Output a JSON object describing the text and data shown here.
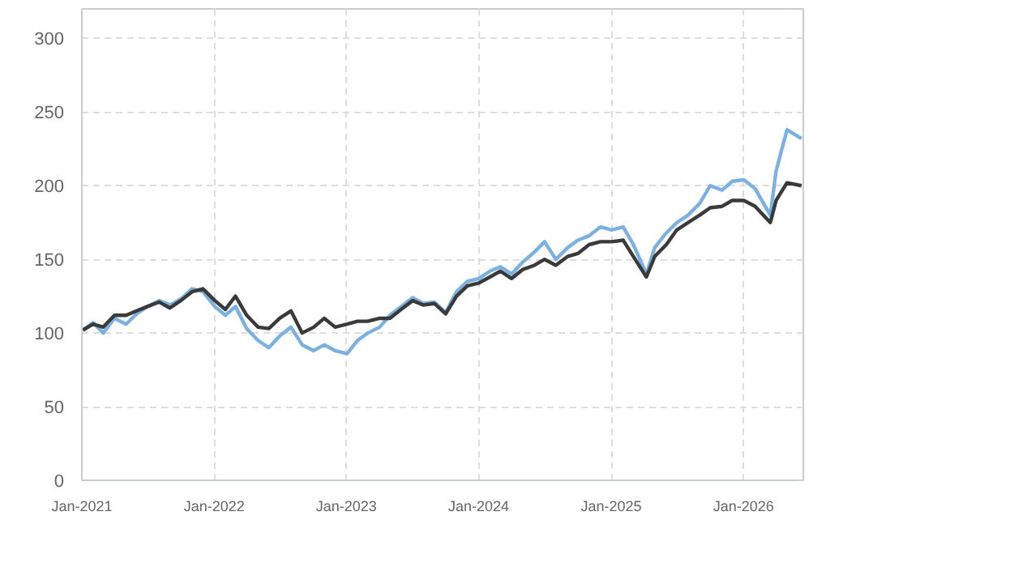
{
  "chart_data": {
    "type": "line",
    "x": [
      "2021-01-04",
      "2021-02-01",
      "2021-03-01",
      "2021-04-01",
      "2021-05-03",
      "2021-06-01",
      "2021-07-01",
      "2021-08-02",
      "2021-09-01",
      "2021-10-01",
      "2021-11-01",
      "2021-12-01",
      "2022-01-03",
      "2022-02-01",
      "2022-03-01",
      "2022-04-01",
      "2022-05-02",
      "2022-06-01",
      "2022-07-01",
      "2022-08-01",
      "2022-09-01",
      "2022-10-03",
      "2022-11-01",
      "2022-12-01",
      "2023-01-03",
      "2023-02-01",
      "2023-03-01",
      "2023-04-03",
      "2023-05-01",
      "2023-06-01",
      "2023-07-03",
      "2023-08-01",
      "2023-09-01",
      "2023-10-02",
      "2023-11-01",
      "2023-12-01",
      "2024-01-02",
      "2024-02-01",
      "2024-03-01",
      "2024-04-01",
      "2024-05-01",
      "2024-06-03",
      "2024-07-01",
      "2024-08-01",
      "2024-09-03",
      "2024-10-01",
      "2024-11-01",
      "2024-12-02",
      "2025-01-02",
      "2025-02-03",
      "2025-03-03",
      "2025-04-08",
      "2025-05-01",
      "2025-06-02",
      "2025-07-01",
      "2025-08-01",
      "2025-09-02",
      "2025-10-01",
      "2025-11-03",
      "2025-12-01",
      "2026-01-02",
      "2026-02-02",
      "2026-03-16",
      "2026-04-01",
      "2026-05-01",
      "2026-06-10"
    ],
    "series": [
      {
        "color": "#7ab0e2",
        "values": [
          102,
          107,
          100,
          110,
          106,
          113,
          118,
          122,
          119,
          123,
          130,
          128,
          118,
          112,
          118,
          103,
          95,
          90,
          98,
          104,
          92,
          88,
          92,
          88,
          86,
          95,
          100,
          104,
          112,
          118,
          124,
          120,
          121,
          114,
          128,
          135,
          137,
          142,
          145,
          140,
          148,
          155,
          162,
          150,
          158,
          163,
          166,
          172,
          170,
          172,
          160,
          140,
          158,
          168,
          175,
          180,
          188,
          200,
          197,
          203,
          204,
          198,
          180,
          210,
          238,
          232
        ]
      },
      {
        "color": "#3a3a3c",
        "values": [
          102,
          106,
          104,
          112,
          112,
          115,
          118,
          121,
          117,
          122,
          128,
          130,
          122,
          116,
          125,
          112,
          104,
          103,
          110,
          115,
          100,
          104,
          110,
          104,
          106,
          108,
          108,
          110,
          110,
          116,
          122,
          119,
          120,
          113,
          125,
          132,
          134,
          138,
          142,
          137,
          143,
          146,
          150,
          146,
          152,
          154,
          160,
          162,
          162,
          163,
          152,
          138,
          152,
          160,
          170,
          175,
          180,
          185,
          186,
          190,
          190,
          186,
          175,
          190,
          202,
          200
        ]
      }
    ],
    "xlim": [
      "2021-01-01",
      "2026-06-15"
    ],
    "xticks": [
      {
        "value": "2021-01-01",
        "label": "Jan-2021"
      },
      {
        "value": "2022-01-01",
        "label": "Jan-2022"
      },
      {
        "value": "2023-01-01",
        "label": "Jan-2023"
      },
      {
        "value": "2024-01-01",
        "label": "Jan-2024"
      },
      {
        "value": "2025-01-01",
        "label": "Jan-2025"
      },
      {
        "value": "2026-01-01",
        "label": "Jan-2026"
      }
    ],
    "ylim": [
      0,
      320
    ],
    "yticks": [
      0,
      50,
      100,
      150,
      200,
      250,
      300
    ],
    "grid": true,
    "line_style": "solid"
  }
}
